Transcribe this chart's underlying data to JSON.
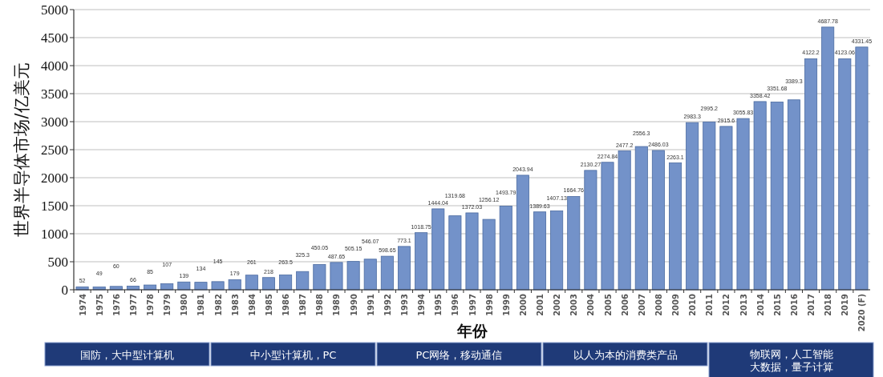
{
  "chart_data": {
    "type": "bar",
    "xlabel": "年份",
    "ylabel": "世界半导体市场/亿美元",
    "categories": [
      "1974",
      "1975",
      "1976",
      "1977",
      "1978",
      "1979",
      "1980",
      "1981",
      "1982",
      "1983",
      "1984",
      "1985",
      "1986",
      "1987",
      "1988",
      "1989",
      "1990",
      "1991",
      "1992",
      "1993",
      "1994",
      "1995",
      "1996",
      "1997",
      "1998",
      "1999",
      "2000",
      "2001",
      "2002",
      "2003",
      "2004",
      "2005",
      "2006",
      "2007",
      "2008",
      "2009",
      "2010",
      "2011",
      "2012",
      "2013",
      "2014",
      "2015",
      "2016",
      "2017",
      "2018",
      "2019",
      "2020 (F)"
    ],
    "values": [
      52,
      49,
      60,
      66,
      85,
      107,
      139,
      134,
      145,
      179,
      261,
      218,
      263.5,
      325.3,
      450.05,
      487.65,
      505.15,
      546.07,
      598.65,
      773.1,
      1018.75,
      1444.04,
      1319.68,
      1372.03,
      1256.12,
      1493.79,
      2043.94,
      1389.63,
      1407.13,
      1664.76,
      2130.27,
      2274.84,
      2477.2,
      2556.3,
      2486.03,
      2263.1,
      2983.3,
      2995.2,
      2915.6,
      3055.83,
      3358.42,
      3351.68,
      3389.3,
      4122.2,
      4687.78,
      4123.06,
      4331.45
    ],
    "color": "#7392c9",
    "data_labels": true,
    "ylim": [
      0,
      5000
    ],
    "yticks": [
      0,
      500,
      1000,
      1500,
      2000,
      2500,
      3000,
      3500,
      4000,
      4500,
      5000
    ],
    "grid": "y",
    "annotations": [
      "国防，大中型计算机",
      "中小型计算机，PC",
      "PC网络，移动通信",
      "以人为本的消费类产品",
      "物联网，人工智能大数据，量子计算"
    ]
  }
}
